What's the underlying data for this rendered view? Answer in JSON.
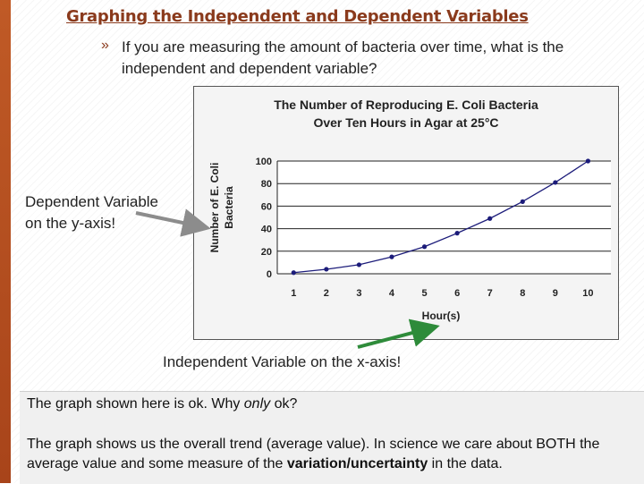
{
  "slide": {
    "title": "Graphing the Independent and Dependent Variables",
    "bullet_marker": "»",
    "bullet_text": "If you are measuring the amount of bacteria over time, what is the independent and dependent variable?",
    "dependent_label_line1": "Dependent Variable",
    "dependent_label_line2": "on the y-axis!",
    "independent_label": "Independent Variable on the x-axis!",
    "note1_before": "The graph shown here is ok.  Why ",
    "note1_italic": "only",
    "note1_after": " ok?",
    "note2_before": "The graph shows us the overall trend (average value).  In science we care about BOTH the average value and some measure of the ",
    "note2_bold": "variation/uncertainty",
    "note2_after": " in the data."
  },
  "colors": {
    "title": "#8a3a1c",
    "arrow_gray": "#8c8c8c",
    "arrow_green": "#2e8b3a",
    "series": "#1c1c7a"
  },
  "chart_data": {
    "type": "line",
    "title_line1": "The Number of Reproducing E. Coli Bacteria",
    "title_line2": "Over Ten Hours in Agar at 25°C",
    "xlabel": "Hour(s)",
    "ylabel_line1": "Number of E. Coli",
    "ylabel_line2": "Bacteria",
    "x": [
      1,
      2,
      3,
      4,
      5,
      6,
      7,
      8,
      9,
      10
    ],
    "x_ticks": [
      "1",
      "2",
      "3",
      "4",
      "5",
      "6",
      "7",
      "8",
      "9",
      "10"
    ],
    "values": [
      1,
      4,
      8,
      15,
      24,
      36,
      49,
      64,
      81,
      100
    ],
    "y_ticks": [
      "0",
      "20",
      "40",
      "60",
      "80",
      "100"
    ],
    "y_tick_values": [
      0,
      20,
      40,
      60,
      80,
      100
    ],
    "ylim": [
      0,
      100
    ],
    "grid": true
  }
}
